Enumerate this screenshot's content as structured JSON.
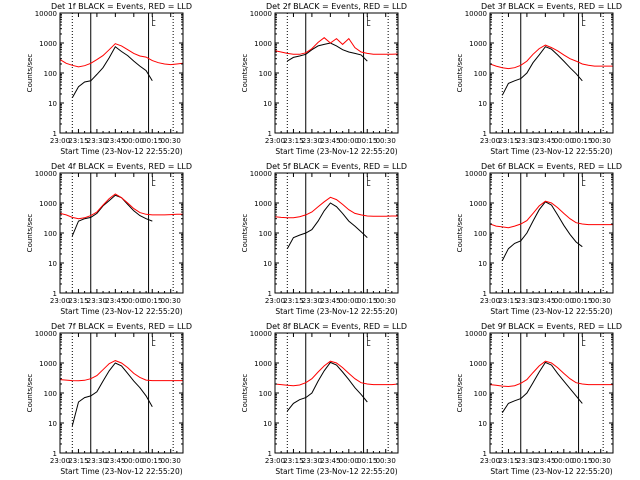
{
  "colors": {
    "events": "#000000",
    "lld": "#ff0000",
    "background": "#ffffff",
    "axes": "#000000"
  },
  "chart_data": {
    "type": "line",
    "layout": "3x3 grid of detector panels",
    "common": {
      "ylabel": "Counts/sec",
      "xlabel": "Start Time (23-Nov-12 22:55:20)",
      "x_tick_labels": [
        "23:00",
        "23:15",
        "23:30",
        "23:45",
        "00:00",
        "00:15",
        "00:30"
      ],
      "x_tick_minutes": [
        0,
        15,
        30,
        45,
        60,
        75,
        90
      ],
      "x_range_minutes": [
        0,
        100
      ],
      "y_scale": "log",
      "y_range": [
        1,
        10000
      ],
      "y_tick_labels": [
        "1",
        "10",
        "100",
        "1000",
        "10000"
      ],
      "y_tick_values": [
        1,
        10,
        100,
        1000,
        10000
      ],
      "vlines_dotted_minutes": [
        10,
        92
      ],
      "vlines_solid_minutes": [
        25,
        72
      ],
      "corner_marks": [
        "L",
        "L"
      ],
      "legend_text": "BLACK = Events, RED = LLD"
    },
    "panels": [
      {
        "title": "Det 1f BLACK = Events, RED = LLD",
        "series": [
          {
            "name": "Events",
            "color": "#000000",
            "x": [
              10,
              15,
              20,
              25,
              30,
              35,
              40,
              45,
              50,
              55,
              60,
              65,
              70,
              75
            ],
            "y": [
              15,
              35,
              50,
              55,
              90,
              150,
              320,
              750,
              520,
              380,
              250,
              170,
              120,
              55
            ]
          },
          {
            "name": "LLD",
            "color": "#ff0000",
            "x": [
              0,
              5,
              10,
              15,
              20,
              25,
              30,
              35,
              40,
              45,
              50,
              55,
              60,
              65,
              70,
              75,
              80,
              85,
              90,
              95,
              100
            ],
            "y": [
              280,
              210,
              180,
              160,
              175,
              210,
              280,
              380,
              600,
              950,
              800,
              600,
              450,
              370,
              340,
              260,
              220,
              200,
              190,
              200,
              210
            ]
          }
        ]
      },
      {
        "title": "Det 2f BLACK = Events, RED = LLD",
        "series": [
          {
            "name": "Events",
            "color": "#000000",
            "x": [
              10,
              15,
              20,
              25,
              30,
              35,
              40,
              45,
              50,
              55,
              60,
              65,
              70,
              75
            ],
            "y": [
              250,
              330,
              370,
              420,
              600,
              800,
              900,
              1000,
              800,
              600,
              500,
              450,
              400,
              250
            ]
          },
          {
            "name": "LLD",
            "color": "#ff0000",
            "x": [
              0,
              5,
              10,
              15,
              20,
              25,
              30,
              35,
              40,
              45,
              50,
              55,
              60,
              65,
              70,
              75,
              80,
              85,
              90,
              95,
              100
            ],
            "y": [
              550,
              500,
              450,
              420,
              420,
              470,
              650,
              1050,
              1500,
              1000,
              1400,
              900,
              1400,
              700,
              500,
              450,
              420,
              420,
              420,
              420,
              430
            ]
          }
        ]
      },
      {
        "title": "Det 3f BLACK = Events, RED = LLD",
        "series": [
          {
            "name": "Events",
            "color": "#000000",
            "x": [
              10,
              15,
              20,
              25,
              30,
              35,
              40,
              45,
              50,
              55,
              60,
              65,
              70,
              75
            ],
            "y": [
              18,
              45,
              55,
              65,
              100,
              220,
              400,
              750,
              620,
              400,
              250,
              150,
              95,
              55
            ]
          },
          {
            "name": "LLD",
            "color": "#ff0000",
            "x": [
              0,
              5,
              10,
              15,
              20,
              25,
              30,
              35,
              40,
              45,
              50,
              55,
              60,
              65,
              70,
              75,
              80,
              85,
              90,
              95,
              100
            ],
            "y": [
              200,
              170,
              150,
              140,
              150,
              180,
              250,
              420,
              650,
              850,
              700,
              550,
              400,
              300,
              250,
              200,
              180,
              170,
              170,
              170,
              170
            ]
          }
        ]
      },
      {
        "title": "Det 4f BLACK = Events, RED = LLD",
        "series": [
          {
            "name": "Events",
            "color": "#000000",
            "x": [
              10,
              15,
              20,
              25,
              30,
              35,
              40,
              45,
              50,
              55,
              60,
              65,
              70,
              75
            ],
            "y": [
              80,
              250,
              300,
              330,
              450,
              800,
              1200,
              1800,
              1500,
              900,
              550,
              380,
              300,
              250
            ]
          },
          {
            "name": "LLD",
            "color": "#ff0000",
            "x": [
              0,
              5,
              10,
              15,
              20,
              25,
              30,
              35,
              40,
              45,
              50,
              55,
              60,
              65,
              70,
              75,
              80,
              85,
              90,
              95,
              100
            ],
            "y": [
              450,
              400,
              330,
              300,
              320,
              380,
              500,
              850,
              1400,
              2000,
              1500,
              1000,
              650,
              480,
              420,
              400,
              400,
              400,
              410,
              420,
              420
            ]
          }
        ]
      },
      {
        "title": "Det 5f BLACK = Events, RED = LLD",
        "series": [
          {
            "name": "Events",
            "color": "#000000",
            "x": [
              10,
              15,
              20,
              25,
              30,
              35,
              40,
              45,
              50,
              55,
              60,
              65,
              70,
              75
            ],
            "y": [
              30,
              70,
              85,
              100,
              130,
              250,
              550,
              1000,
              750,
              450,
              250,
              170,
              110,
              70
            ]
          },
          {
            "name": "LLD",
            "color": "#ff0000",
            "x": [
              0,
              5,
              10,
              15,
              20,
              25,
              30,
              35,
              40,
              45,
              50,
              55,
              60,
              65,
              70,
              75,
              80,
              85,
              90,
              95,
              100
            ],
            "y": [
              350,
              330,
              320,
              320,
              350,
              400,
              500,
              750,
              1100,
              1550,
              1300,
              900,
              600,
              450,
              400,
              370,
              360,
              360,
              360,
              370,
              370
            ]
          }
        ]
      },
      {
        "title": "Det 6f BLACK = Events, RED = LLD",
        "series": [
          {
            "name": "Events",
            "color": "#000000",
            "x": [
              10,
              15,
              20,
              25,
              30,
              35,
              40,
              45,
              50,
              55,
              60,
              65,
              70,
              75
            ],
            "y": [
              12,
              30,
              45,
              55,
              100,
              250,
              600,
              1100,
              850,
              400,
              180,
              90,
              50,
              35
            ]
          },
          {
            "name": "LLD",
            "color": "#ff0000",
            "x": [
              0,
              5,
              10,
              15,
              20,
              25,
              30,
              35,
              40,
              45,
              50,
              55,
              60,
              65,
              70,
              75,
              80,
              85,
              90,
              95,
              100
            ],
            "y": [
              200,
              170,
              160,
              150,
              170,
              200,
              260,
              450,
              800,
              1150,
              1000,
              700,
              450,
              300,
              220,
              200,
              190,
              190,
              190,
              190,
              190
            ]
          }
        ]
      },
      {
        "title": "Det 7f BLACK = Events, RED = LLD",
        "series": [
          {
            "name": "Events",
            "color": "#000000",
            "x": [
              10,
              15,
              20,
              25,
              30,
              35,
              40,
              45,
              50,
              55,
              60,
              65,
              70,
              75
            ],
            "y": [
              8,
              50,
              70,
              80,
              110,
              250,
              550,
              1000,
              800,
              450,
              250,
              150,
              80,
              35
            ]
          },
          {
            "name": "LLD",
            "color": "#ff0000",
            "x": [
              0,
              5,
              10,
              15,
              20,
              25,
              30,
              35,
              40,
              45,
              50,
              55,
              60,
              65,
              70,
              75,
              80,
              85,
              90,
              95,
              100
            ],
            "y": [
              280,
              270,
              260,
              255,
              265,
              300,
              380,
              600,
              950,
              1200,
              1000,
              700,
              450,
              330,
              270,
              260,
              260,
              260,
              260,
              260,
              260
            ]
          }
        ]
      },
      {
        "title": "Det 8f BLACK = Events, RED = LLD",
        "series": [
          {
            "name": "Events",
            "color": "#000000",
            "x": [
              10,
              15,
              20,
              25,
              30,
              35,
              40,
              45,
              50,
              55,
              60,
              65,
              70,
              75
            ],
            "y": [
              25,
              45,
              60,
              70,
              100,
              250,
              550,
              1050,
              850,
              500,
              280,
              150,
              90,
              50
            ]
          },
          {
            "name": "LLD",
            "color": "#ff0000",
            "x": [
              0,
              5,
              10,
              15,
              20,
              25,
              30,
              35,
              40,
              45,
              50,
              55,
              60,
              65,
              70,
              75,
              80,
              85,
              90,
              95,
              100
            ],
            "y": [
              200,
              190,
              180,
              175,
              185,
              220,
              300,
              500,
              800,
              1150,
              1000,
              700,
              450,
              300,
              220,
              200,
              190,
              190,
              190,
              190,
              200
            ]
          }
        ]
      },
      {
        "title": "Det 9f BLACK = Events, RED = LLD",
        "series": [
          {
            "name": "Events",
            "color": "#000000",
            "x": [
              10,
              15,
              20,
              25,
              30,
              35,
              40,
              45,
              50,
              55,
              60,
              65,
              70,
              75
            ],
            "y": [
              22,
              45,
              55,
              65,
              100,
              220,
              500,
              1050,
              850,
              450,
              250,
              140,
              80,
              45
            ]
          },
          {
            "name": "LLD",
            "color": "#ff0000",
            "x": [
              0,
              5,
              10,
              15,
              20,
              25,
              30,
              35,
              40,
              45,
              50,
              55,
              60,
              65,
              70,
              75,
              80,
              85,
              90,
              95,
              100
            ],
            "y": [
              190,
              180,
              170,
              165,
              175,
              210,
              280,
              480,
              800,
              1150,
              1000,
              700,
              450,
              300,
              220,
              200,
              190,
              190,
              190,
              190,
              190
            ]
          }
        ]
      }
    ]
  }
}
